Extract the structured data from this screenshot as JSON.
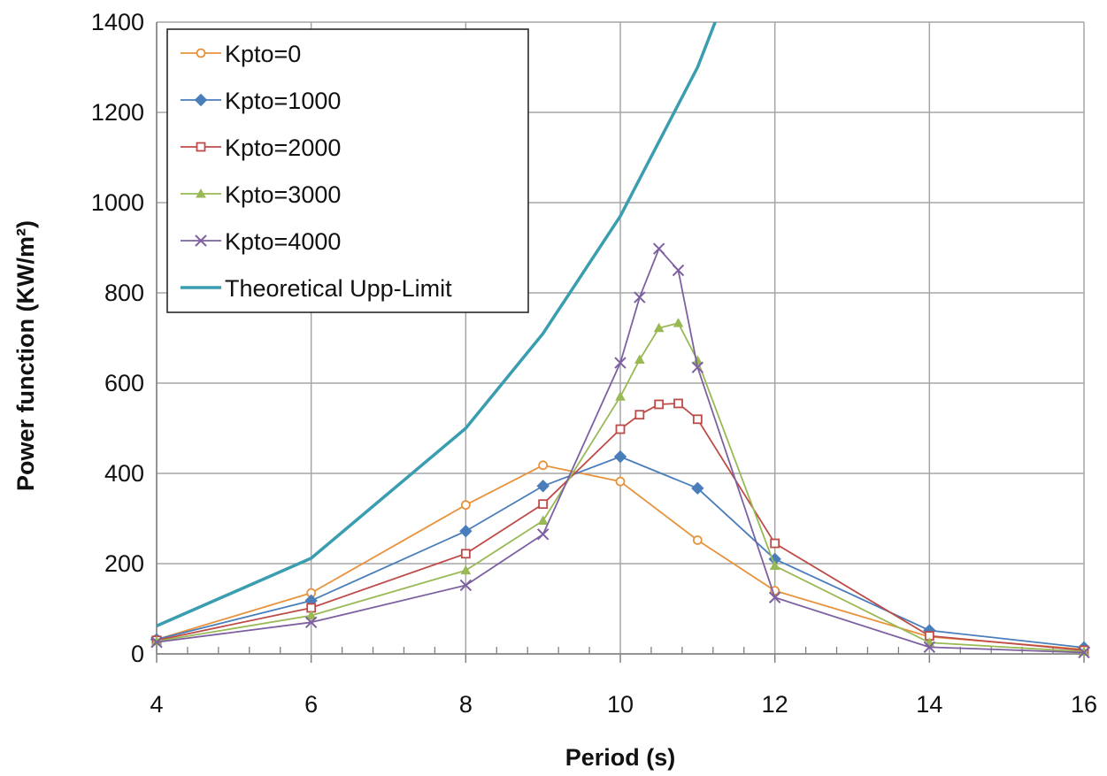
{
  "chart_data": {
    "type": "line",
    "xlabel": "Period (s)",
    "ylabel": "Power function (KW/m²)",
    "xlim": [
      4,
      16
    ],
    "ylim": [
      0,
      1400
    ],
    "xticks": [
      4,
      6,
      8,
      10,
      12,
      14,
      16
    ],
    "yticks": [
      0,
      200,
      400,
      600,
      800,
      1000,
      1200,
      1400
    ],
    "x_minor_step": 0.4,
    "grid": true,
    "legend_position": "top-left",
    "series": [
      {
        "name": "Kpto=0",
        "color": "#e8923c",
        "marker": "circle-open",
        "x": [
          4,
          6,
          8,
          9,
          10,
          11,
          12,
          14,
          16
        ],
        "y": [
          32,
          135,
          330,
          418,
          382,
          252,
          140,
          38,
          10
        ]
      },
      {
        "name": "Kpto=1000",
        "color": "#4a7ebb",
        "marker": "diamond",
        "x": [
          4,
          6,
          8,
          9,
          10,
          11,
          12,
          14,
          16
        ],
        "y": [
          32,
          118,
          272,
          372,
          437,
          367,
          210,
          52,
          14
        ]
      },
      {
        "name": "Kpto=2000",
        "color": "#be4b48",
        "marker": "square-open",
        "x": [
          4,
          6,
          8,
          9,
          10,
          10.25,
          10.5,
          10.75,
          11,
          12,
          14,
          16
        ],
        "y": [
          30,
          102,
          222,
          332,
          498,
          530,
          553,
          555,
          520,
          245,
          40,
          8
        ]
      },
      {
        "name": "Kpto=3000",
        "color": "#98b954",
        "marker": "triangle",
        "x": [
          4,
          6,
          8,
          9,
          10,
          10.25,
          10.5,
          10.75,
          11,
          12,
          14,
          16
        ],
        "y": [
          28,
          85,
          185,
          295,
          570,
          652,
          722,
          733,
          650,
          195,
          25,
          5
        ]
      },
      {
        "name": "Kpto=4000",
        "color": "#7d60a0",
        "marker": "x",
        "x": [
          4,
          6,
          8,
          9,
          10,
          10.25,
          10.5,
          10.75,
          11,
          12,
          14,
          16
        ],
        "y": [
          26,
          70,
          152,
          265,
          645,
          790,
          898,
          850,
          635,
          125,
          15,
          3
        ]
      },
      {
        "name": "Theoretical Upp-Limit",
        "color": "#3a9db0",
        "marker": "none",
        "x": [
          4,
          6,
          8,
          9,
          10,
          11,
          11.25
        ],
        "y": [
          62,
          212,
          500,
          710,
          970,
          1300,
          1410
        ]
      }
    ]
  }
}
